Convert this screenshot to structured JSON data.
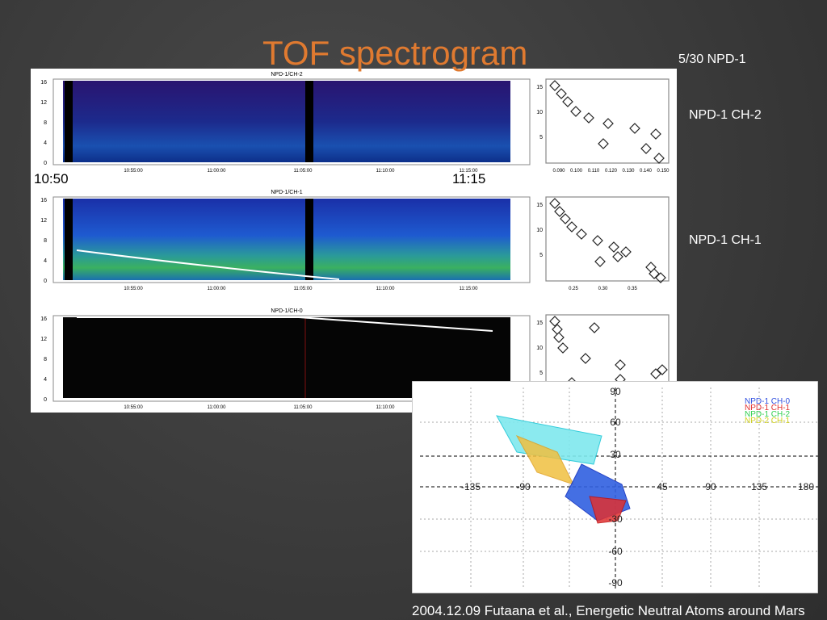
{
  "title": "TOF spectrogram",
  "date_label": "5/30 NPD-1",
  "time_labels": [
    "10:50",
    "11:15"
  ],
  "side_labels": [
    "NPD-1 CH-2",
    "NPD-1 CH-1"
  ],
  "footer": "2004.12.09 Futaana et al., Energetic Neutral Atoms around Mars",
  "spectrogram": {
    "panels": [
      {
        "title": "NPD-1/CH-2",
        "yticks": [
          "0",
          "4",
          "8",
          "12",
          "16"
        ],
        "xticks": [
          "10:55:00",
          "11:00:00",
          "11:05:00",
          "11:10:00",
          "11:15:00"
        ]
      },
      {
        "title": "NPD-1/CH-1",
        "yticks": [
          "0",
          "4",
          "8",
          "12",
          "16"
        ],
        "xticks": [
          "10:55:00",
          "11:00:00",
          "11:05:00",
          "11:10:00",
          "11:15:00"
        ]
      },
      {
        "title": "NPD-1/CH-0",
        "yticks": [
          "0",
          "4",
          "8",
          "12",
          "16"
        ],
        "xticks": [
          "10:55:00",
          "11:00:00",
          "11:05:00",
          "11:10:00"
        ]
      }
    ]
  },
  "scatter_panels": [
    {
      "yticks": [
        "5",
        "10",
        "15"
      ],
      "xticks": [
        "0.090",
        "0.100",
        "0.110",
        "0.120",
        "0.130",
        "0.140",
        "0.150"
      ]
    },
    {
      "yticks": [
        "5",
        "10",
        "15"
      ],
      "xticks": [
        "0.25",
        "0.30",
        "0.35"
      ]
    },
    {
      "yticks": [
        "5",
        "10",
        "15"
      ],
      "xticks": []
    }
  ],
  "map": {
    "legend": [
      "NPD-1 CH-0",
      "NPD-1 CH-1",
      "NPD-1 CH-2",
      "NPD-2 CH-1"
    ],
    "xticks": [
      "-135",
      "-90",
      "45",
      "90",
      "135",
      "180"
    ],
    "yticks": [
      "90",
      "60",
      "30",
      "-30",
      "-60",
      "-90"
    ]
  }
}
